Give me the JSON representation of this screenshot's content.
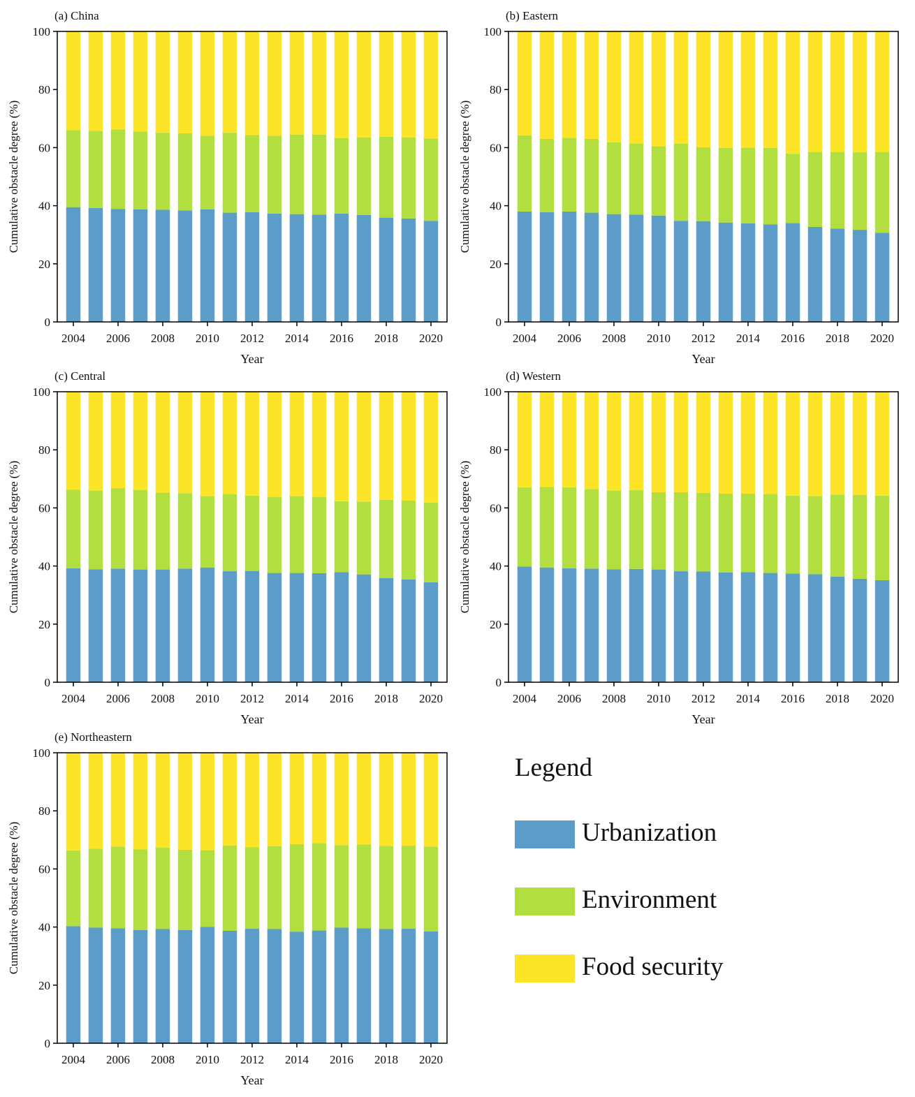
{
  "colors": {
    "urbanization": "#5b9cc9",
    "environment": "#b2df3f",
    "food_security": "#fde426",
    "axis": "#000000"
  },
  "legend": {
    "title": "Legend",
    "items": [
      {
        "label": "Urbanization",
        "color": "#5b9cc9"
      },
      {
        "label": "Environment",
        "color": "#b2df3f"
      },
      {
        "label": "Food security",
        "color": "#fde426"
      }
    ]
  },
  "chart_data": [
    {
      "type": "bar",
      "stacked": true,
      "title": "(a) China",
      "xlabel": "Year",
      "ylabel": "Cumulative obstacle degree (%)",
      "ylim": [
        0,
        100
      ],
      "yticks": [
        "0",
        "20",
        "40",
        "60",
        "80",
        "100"
      ],
      "xticks": [
        "2004",
        "2006",
        "2008",
        "2010",
        "2012",
        "2014",
        "2016",
        "2018",
        "2020"
      ],
      "categories": [
        "2004",
        "2005",
        "2006",
        "2007",
        "2008",
        "2009",
        "2010",
        "2011",
        "2012",
        "2013",
        "2014",
        "2015",
        "2016",
        "2017",
        "2018",
        "2019",
        "2020"
      ],
      "series": [
        {
          "name": "Urbanization",
          "values": [
            39.5,
            39.2,
            38.9,
            38.7,
            38.6,
            38.4,
            38.7,
            37.6,
            37.8,
            37.3,
            37.1,
            36.9,
            37.3,
            36.8,
            35.9,
            35.6,
            34.8
          ]
        },
        {
          "name": "Environment",
          "values": [
            26.5,
            26.6,
            27.4,
            26.8,
            26.5,
            26.5,
            25.4,
            27.5,
            26.5,
            26.8,
            27.4,
            27.6,
            26.0,
            26.7,
            27.9,
            27.9,
            28.3
          ]
        },
        {
          "name": "Food security",
          "values": [
            34.0,
            34.2,
            33.7,
            34.5,
            34.9,
            35.1,
            35.9,
            34.9,
            35.7,
            35.9,
            35.5,
            35.5,
            36.7,
            36.5,
            36.2,
            36.5,
            36.9
          ]
        }
      ]
    },
    {
      "type": "bar",
      "stacked": true,
      "title": "(b) Eastern",
      "xlabel": "Year",
      "ylabel": "Cumulative obstacle degree (%)",
      "ylim": [
        0,
        100
      ],
      "yticks": [
        "0",
        "20",
        "40",
        "60",
        "80",
        "100"
      ],
      "xticks": [
        "2004",
        "2006",
        "2008",
        "2010",
        "2012",
        "2014",
        "2016",
        "2018",
        "2020"
      ],
      "categories": [
        "2004",
        "2005",
        "2006",
        "2007",
        "2008",
        "2009",
        "2010",
        "2011",
        "2012",
        "2013",
        "2014",
        "2015",
        "2016",
        "2017",
        "2018",
        "2019",
        "2020"
      ],
      "series": [
        {
          "name": "Urbanization",
          "values": [
            38.0,
            37.8,
            38.0,
            37.6,
            37.1,
            36.9,
            36.6,
            34.8,
            34.7,
            34.2,
            33.9,
            33.6,
            34.0,
            32.7,
            32.1,
            31.7,
            30.7
          ]
        },
        {
          "name": "Environment",
          "values": [
            26.2,
            25.2,
            25.4,
            25.4,
            24.7,
            24.5,
            23.9,
            26.5,
            25.4,
            25.7,
            26.1,
            26.3,
            23.9,
            25.8,
            26.4,
            26.7,
            27.8
          ]
        },
        {
          "name": "Food security",
          "values": [
            35.8,
            37.0,
            36.6,
            37.0,
            38.2,
            38.6,
            39.5,
            38.7,
            39.9,
            40.1,
            40.0,
            40.1,
            42.1,
            41.5,
            41.5,
            41.6,
            41.5
          ]
        }
      ]
    },
    {
      "type": "bar",
      "stacked": true,
      "title": "(c) Central",
      "xlabel": "Year",
      "ylabel": "Cumulative obstacle degree (%)",
      "ylim": [
        0,
        100
      ],
      "yticks": [
        "0",
        "20",
        "40",
        "60",
        "80",
        "100"
      ],
      "xticks": [
        "2004",
        "2006",
        "2008",
        "2010",
        "2012",
        "2014",
        "2016",
        "2018",
        "2020"
      ],
      "categories": [
        "2004",
        "2005",
        "2006",
        "2007",
        "2008",
        "2009",
        "2010",
        "2011",
        "2012",
        "2013",
        "2014",
        "2015",
        "2016",
        "2017",
        "2018",
        "2019",
        "2020"
      ],
      "series": [
        {
          "name": "Urbanization",
          "values": [
            39.2,
            38.9,
            39.1,
            38.8,
            38.8,
            39.1,
            39.5,
            38.2,
            38.3,
            37.6,
            37.6,
            37.5,
            37.9,
            37.1,
            35.9,
            35.4,
            34.4
          ]
        },
        {
          "name": "Environment",
          "values": [
            27.1,
            27.1,
            27.7,
            27.4,
            26.5,
            26.0,
            24.6,
            26.6,
            25.9,
            26.2,
            26.5,
            26.3,
            24.4,
            25.1,
            26.9,
            27.1,
            27.4
          ]
        },
        {
          "name": "Food security",
          "values": [
            33.7,
            34.0,
            33.2,
            33.8,
            34.7,
            34.9,
            35.9,
            35.2,
            35.8,
            36.2,
            35.9,
            36.2,
            37.7,
            37.8,
            37.2,
            37.5,
            38.2
          ]
        }
      ]
    },
    {
      "type": "bar",
      "stacked": true,
      "title": "(d) Western",
      "xlabel": "Year",
      "ylabel": "Cumulative obstacle degree (%)",
      "ylim": [
        0,
        100
      ],
      "yticks": [
        "0",
        "20",
        "40",
        "60",
        "80",
        "100"
      ],
      "xticks": [
        "2004",
        "2006",
        "2008",
        "2010",
        "2012",
        "2014",
        "2016",
        "2018",
        "2020"
      ],
      "categories": [
        "2004",
        "2005",
        "2006",
        "2007",
        "2008",
        "2009",
        "2010",
        "2011",
        "2012",
        "2013",
        "2014",
        "2015",
        "2016",
        "2017",
        "2018",
        "2019",
        "2020"
      ],
      "series": [
        {
          "name": "Urbanization",
          "values": [
            39.8,
            39.5,
            39.2,
            39.1,
            38.9,
            39.0,
            38.8,
            38.2,
            38.1,
            37.8,
            37.9,
            37.6,
            37.4,
            37.2,
            36.3,
            35.6,
            35.1
          ]
        },
        {
          "name": "Environment",
          "values": [
            27.3,
            27.7,
            27.9,
            27.4,
            27.1,
            27.1,
            26.6,
            27.2,
            27.1,
            27.1,
            27.0,
            27.2,
            26.8,
            26.9,
            28.3,
            28.9,
            29.1
          ]
        },
        {
          "name": "Food security",
          "values": [
            32.9,
            32.8,
            32.9,
            33.5,
            34.0,
            33.9,
            34.6,
            34.6,
            34.8,
            35.1,
            35.1,
            35.2,
            35.8,
            35.9,
            35.4,
            35.5,
            35.8
          ]
        }
      ]
    },
    {
      "type": "bar",
      "stacked": true,
      "title": "(e) Northeastern",
      "xlabel": "Year",
      "ylabel": "Cumulative obstacle degree (%)",
      "ylim": [
        0,
        100
      ],
      "yticks": [
        "0",
        "20",
        "40",
        "60",
        "80",
        "100"
      ],
      "xticks": [
        "2004",
        "2006",
        "2008",
        "2010",
        "2012",
        "2014",
        "2016",
        "2018",
        "2020"
      ],
      "categories": [
        "2004",
        "2005",
        "2006",
        "2007",
        "2008",
        "2009",
        "2010",
        "2011",
        "2012",
        "2013",
        "2014",
        "2015",
        "2016",
        "2017",
        "2018",
        "2019",
        "2020"
      ],
      "series": [
        {
          "name": "Urbanization",
          "values": [
            40.3,
            39.8,
            39.6,
            39.0,
            39.3,
            39.0,
            40.1,
            38.7,
            39.4,
            39.3,
            38.4,
            38.8,
            39.8,
            39.6,
            39.3,
            39.4,
            38.5
          ]
        },
        {
          "name": "Environment",
          "values": [
            26.1,
            27.2,
            28.1,
            27.7,
            28.0,
            27.6,
            26.4,
            29.4,
            28.1,
            28.5,
            30.1,
            30.1,
            28.4,
            28.8,
            28.6,
            28.6,
            29.2
          ]
        },
        {
          "name": "Food security",
          "values": [
            33.6,
            33.0,
            32.3,
            33.3,
            32.7,
            33.4,
            33.5,
            31.9,
            32.5,
            32.2,
            31.5,
            31.1,
            31.8,
            31.6,
            32.1,
            32.0,
            32.3
          ]
        }
      ]
    }
  ]
}
